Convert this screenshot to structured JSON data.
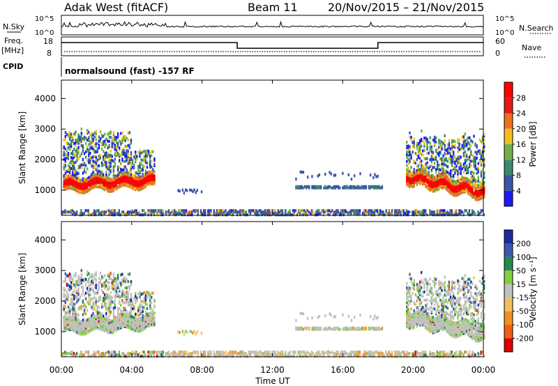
{
  "header": {
    "station": "Adak West (fitACF)",
    "beam": "Beam 11",
    "date_range": "20/Nov/2015 – 21/Nov/2015"
  },
  "top_panels": {
    "nsky_label": "N.Sky",
    "nsky_ticks": [
      "10^5",
      "10^0"
    ],
    "nsearch_label": "N.Search",
    "freq_label": "Freq.",
    "freq_unit": "[MHz]",
    "freq_ticks": [
      "18",
      "8"
    ],
    "nave_label": "Nave",
    "nave_ticks": [
      "60",
      "0"
    ],
    "cpid_label": "CPID",
    "cpid_text": "normalsound (fast) -157 RF"
  },
  "axes": {
    "ylabel": "Slant Range [km]",
    "xlabel": "Time UT",
    "y_ticks": [
      "1000",
      "2000",
      "3000",
      "4000"
    ],
    "x_ticks": [
      "00:00",
      "04:00",
      "08:00",
      "12:00",
      "16:00",
      "20:00",
      "00:00"
    ]
  },
  "power_scale": {
    "label": "Power [dB]",
    "ticks": [
      "4",
      "8",
      "12",
      "16",
      "20",
      "24",
      "28"
    ],
    "colors": [
      "#1a1aff",
      "#3a56a8",
      "#3b8a6e",
      "#6fb04a",
      "#f0c020",
      "#f07020",
      "#e81818",
      "#ff0000"
    ]
  },
  "velocity_scale": {
    "label": "Velocity [m s⁻¹]",
    "ticks": [
      "200",
      "100",
      "50",
      "15",
      "-15",
      "-50",
      "-100",
      "-200"
    ],
    "colors": [
      "#1a2aa0",
      "#3a5ab0",
      "#2a8a4a",
      "#80d040",
      "#c0c0c0",
      "#f0c060",
      "#f09020",
      "#f06010",
      "#e00000"
    ]
  },
  "chart_data": [
    {
      "type": "line",
      "title": "Freq.",
      "ylabel": "[MHz]",
      "ylim": [
        8,
        18
      ],
      "x": [
        "00:00",
        "10:00",
        "10:00",
        "18:00",
        "18:00",
        "24:00"
      ],
      "series": [
        {
          "values": [
            15,
            15,
            12,
            12,
            15,
            15
          ]
        }
      ]
    },
    {
      "type": "heatmap",
      "title": "Power [dB]",
      "xlabel": "Time UT",
      "ylabel": "Slant Range [km]",
      "xlim": [
        "00:00",
        "24:00"
      ],
      "ylim": [
        180,
        4600
      ],
      "color_ticks": [
        4,
        8,
        12,
        16,
        20,
        24,
        28
      ]
    },
    {
      "type": "heatmap",
      "title": "Velocity [m s⁻¹]",
      "xlabel": "Time UT",
      "ylabel": "Slant Range [km]",
      "xlim": [
        "00:00",
        "24:00"
      ],
      "ylim": [
        180,
        4600
      ],
      "color_ticks": [
        200,
        100,
        50,
        15,
        -15,
        -50,
        -100,
        -200
      ]
    }
  ]
}
